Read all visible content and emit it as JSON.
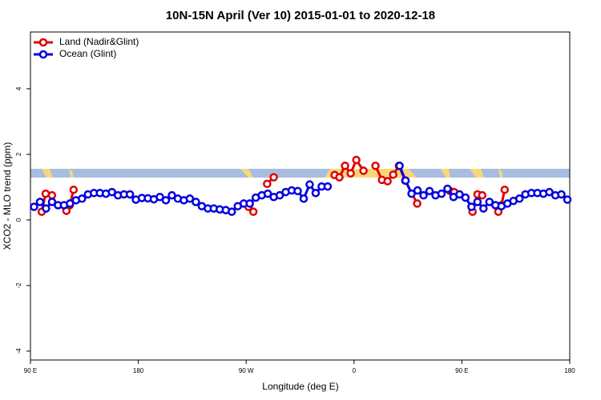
{
  "chart_data": {
    "type": "line",
    "title": "10N-15N April (Ver 10)   2015-01-01 to 2020-12-18",
    "xlabel": "Longitude (deg E)",
    "ylabel": "XCO2 - MLO trend (ppm)",
    "xlim": [
      90,
      540
    ],
    "ylim": [
      -4.27,
      5.73
    ],
    "xticks": [
      {
        "value": 90,
        "label": "90 E"
      },
      {
        "value": 180,
        "label": "180"
      },
      {
        "value": 270,
        "label": "90 W"
      },
      {
        "value": 360,
        "label": "0"
      },
      {
        "value": 450,
        "label": "90 E"
      },
      {
        "value": 540,
        "label": "180"
      }
    ],
    "yticks": [
      -4,
      -2,
      0,
      2,
      4
    ],
    "legend": "top-left",
    "series": [
      {
        "name": "Land (Nadir&Glint)",
        "color": "#e00000",
        "x": [
          99.4,
          102.7,
          108,
          110,
          120,
          122.8,
          126,
          128,
          272,
          276,
          280,
          287.5,
          293,
          300,
          343.8,
          347.8,
          352.5,
          357.2,
          361.9,
          367.9,
          372,
          377.9,
          383.3,
          388,
          392.7,
          397.5,
          402.7,
          412.7,
          420,
          440.2,
          443.6,
          450,
          458.9,
          463,
          467,
          470,
          480.4,
          483,
          485.7
        ],
        "values": [
          0.25,
          0.8,
          0.75,
          null,
          0.28,
          0.45,
          0.92,
          null,
          0.4,
          0.25,
          null,
          1.1,
          1.3,
          null,
          1.37,
          1.3,
          1.65,
          1.42,
          1.83,
          1.5,
          null,
          1.65,
          1.22,
          1.18,
          1.38,
          1.65,
          1.2,
          0.5,
          null,
          0.88,
          0.85,
          null,
          0.25,
          0.78,
          0.75,
          null,
          0.25,
          0.45,
          0.92
        ]
      },
      {
        "name": "Ocean (Glint)",
        "color": "#0000e0",
        "x": [
          93,
          98,
          103,
          108,
          113,
          118,
          123,
          128,
          133,
          138,
          143,
          148,
          153,
          158,
          163,
          168,
          173,
          178,
          183,
          188,
          193,
          198,
          203,
          208,
          213,
          218,
          223,
          228,
          233,
          238,
          243,
          248,
          253,
          258,
          263,
          268,
          273,
          278,
          283,
          288,
          293,
          298,
          303,
          308,
          313,
          318,
          323,
          328,
          333,
          338,
          350,
          398,
          403,
          408,
          413,
          418,
          423,
          428,
          433,
          438,
          443,
          448,
          453,
          458,
          463,
          468,
          473,
          478,
          483,
          488,
          493,
          498,
          503,
          508,
          513,
          518,
          523,
          528,
          533,
          538
        ],
        "values": [
          0.4,
          0.55,
          0.35,
          0.55,
          0.45,
          0.45,
          0.5,
          0.6,
          0.65,
          0.78,
          0.82,
          0.82,
          0.8,
          0.85,
          0.75,
          0.78,
          0.78,
          0.62,
          0.67,
          0.66,
          0.63,
          0.7,
          0.6,
          0.75,
          0.65,
          0.6,
          0.65,
          0.55,
          0.42,
          0.35,
          0.35,
          0.32,
          0.3,
          0.25,
          0.42,
          0.5,
          0.5,
          0.68,
          0.75,
          0.8,
          0.7,
          0.75,
          0.85,
          0.9,
          0.88,
          0.65,
          1.08,
          0.82,
          1.02,
          1.02,
          null,
          1.65,
          1.2,
          0.8,
          0.9,
          0.75,
          0.88,
          0.75,
          0.8,
          0.95,
          0.7,
          0.78,
          0.68,
          0.4,
          0.55,
          0.35,
          0.55,
          0.45,
          0.42,
          0.5,
          0.58,
          0.65,
          0.78,
          0.82,
          0.82,
          0.8,
          0.85,
          0.75,
          0.78,
          0.62
        ]
      }
    ]
  }
}
